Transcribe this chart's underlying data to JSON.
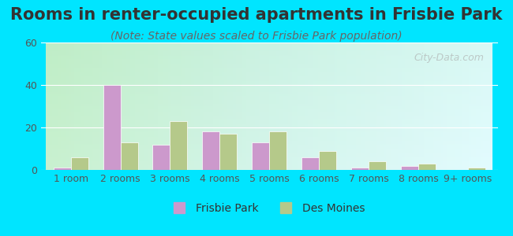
{
  "title": "Rooms in renter-occupied apartments in Frisbie Park",
  "subtitle": "(Note: State values scaled to Frisbie Park population)",
  "categories": [
    "1 room",
    "2 rooms",
    "3 rooms",
    "4 rooms",
    "5 rooms",
    "6 rooms",
    "7 rooms",
    "8 rooms",
    "9+ rooms"
  ],
  "frisbie_park": [
    1,
    40,
    12,
    18,
    13,
    6,
    1,
    2,
    0
  ],
  "des_moines": [
    6,
    13,
    23,
    17,
    18,
    9,
    4,
    3,
    1
  ],
  "frisbie_color": "#cc99cc",
  "des_moines_color": "#b5c98a",
  "background_outer": "#00e5ff",
  "ylim": [
    0,
    60
  ],
  "yticks": [
    0,
    20,
    40,
    60
  ],
  "bar_width": 0.35,
  "title_fontsize": 15,
  "subtitle_fontsize": 10,
  "legend_fontsize": 10,
  "tick_fontsize": 9,
  "watermark_text": "City-Data.com"
}
